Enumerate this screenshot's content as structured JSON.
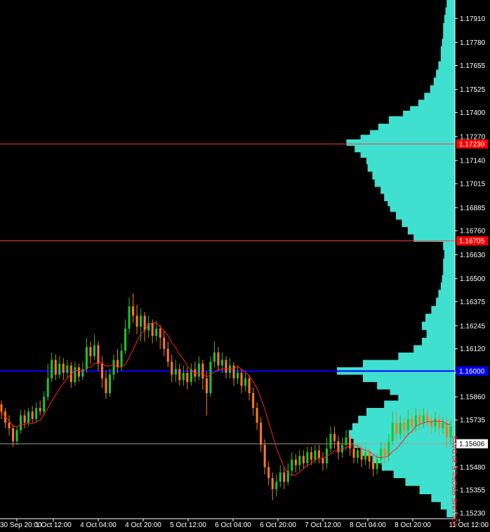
{
  "chart_data": {
    "type": "candlestick",
    "price_axis": {
      "ticks": [
        "1.17910",
        "1.17780",
        "1.17655",
        "1.17525",
        "1.17400",
        "1.17270",
        "1.17140",
        "1.17015",
        "1.16885",
        "1.16760",
        "1.16630",
        "1.16500",
        "1.16375",
        "1.16245",
        "1.16120",
        "1.15990",
        "1.15860",
        "1.15735",
        "1.15606",
        "1.15480",
        "1.15355",
        "1.15230"
      ],
      "tick_values": [
        1.1791,
        1.1778,
        1.17655,
        1.17525,
        1.174,
        1.1727,
        1.1714,
        1.17015,
        1.16885,
        1.1676,
        1.1663,
        1.165,
        1.16375,
        1.16245,
        1.1612,
        1.1599,
        1.1586,
        1.15735,
        1.15606,
        1.1548,
        1.15355,
        1.1523
      ],
      "range": [
        1.152,
        1.1801
      ]
    },
    "time_axis": {
      "labels": [
        "30 Sep 20:00",
        "1 Oct 12:00",
        "4 Oct 04:00",
        "4 Oct 20:00",
        "5 Oct 12:00",
        "6 Oct 04:00",
        "6 Oct 20:00",
        "7 Oct 12:00",
        "8 Oct 04:00",
        "8 Oct 20:00",
        "11 Oct 12:00"
      ]
    },
    "horizontal_levels": [
      {
        "price": 1.1723,
        "label": "1.17230",
        "color": "#ff3b3b",
        "tag_color": "#ff0000"
      },
      {
        "price": 1.16705,
        "label": "1.16705",
        "color": "#ff3b3b",
        "tag_color": "#ff0000"
      },
      {
        "price": 1.16,
        "label": "1.16000",
        "color": "#0000ff",
        "tag_color": "#0000ff"
      },
      {
        "price": 1.15606,
        "label": "1.15606",
        "color": "#9a9a9a",
        "tag_color": "#ffffff",
        "is_bid": true
      }
    ],
    "volume_profile": {
      "color": "#40e0d0",
      "levels": [
        [
          1.1799,
          0.07
        ],
        [
          1.1795,
          0.08
        ],
        [
          1.1791,
          0.09
        ],
        [
          1.1786,
          0.1
        ],
        [
          1.1782,
          0.1
        ],
        [
          1.1778,
          0.11
        ],
        [
          1.1774,
          0.12
        ],
        [
          1.177,
          0.12
        ],
        [
          1.17655,
          0.14
        ],
        [
          1.1761,
          0.16
        ],
        [
          1.1757,
          0.18
        ],
        [
          1.17525,
          0.21
        ],
        [
          1.1749,
          0.26
        ],
        [
          1.1745,
          0.31
        ],
        [
          1.1742,
          0.38
        ],
        [
          1.174,
          0.44
        ],
        [
          1.1736,
          0.56
        ],
        [
          1.1732,
          0.65
        ],
        [
          1.1729,
          0.72
        ],
        [
          1.1727,
          0.8
        ],
        [
          1.1724,
          0.92
        ],
        [
          1.172,
          0.85
        ],
        [
          1.1717,
          0.8
        ],
        [
          1.1714,
          0.75
        ],
        [
          1.171,
          0.74
        ],
        [
          1.1706,
          0.7
        ],
        [
          1.17015,
          0.68
        ],
        [
          1.1698,
          0.63
        ],
        [
          1.1694,
          0.6
        ],
        [
          1.169,
          0.57
        ],
        [
          1.16885,
          0.55
        ],
        [
          1.1684,
          0.5
        ],
        [
          1.168,
          0.45
        ],
        [
          1.1676,
          0.4
        ],
        [
          1.1672,
          0.35
        ],
        [
          1.1668,
          0.1
        ],
        [
          1.1663,
          0.09
        ],
        [
          1.1659,
          0.1
        ],
        [
          1.1654,
          0.1
        ],
        [
          1.165,
          0.11
        ],
        [
          1.1646,
          0.12
        ],
        [
          1.1642,
          0.14
        ],
        [
          1.16375,
          0.16
        ],
        [
          1.1633,
          0.2
        ],
        [
          1.1629,
          0.25
        ],
        [
          1.16245,
          0.28
        ],
        [
          1.162,
          0.24
        ],
        [
          1.1616,
          0.28
        ],
        [
          1.1612,
          0.35
        ],
        [
          1.1608,
          0.48
        ],
        [
          1.1604,
          0.78
        ],
        [
          1.16,
          1.0
        ],
        [
          1.1596,
          0.78
        ],
        [
          1.1592,
          0.66
        ],
        [
          1.1588,
          0.55
        ],
        [
          1.1586,
          0.48
        ],
        [
          1.1582,
          0.6
        ],
        [
          1.1578,
          0.75
        ],
        [
          1.15735,
          0.82
        ],
        [
          1.157,
          0.87
        ],
        [
          1.1566,
          0.9
        ],
        [
          1.15606,
          0.86
        ],
        [
          1.1556,
          0.8
        ],
        [
          1.1552,
          0.7
        ],
        [
          1.1548,
          0.62
        ],
        [
          1.1544,
          0.52
        ],
        [
          1.154,
          0.42
        ],
        [
          1.15355,
          0.3
        ],
        [
          1.1531,
          0.2
        ],
        [
          1.1527,
          0.12
        ],
        [
          1.1523,
          0.07
        ]
      ]
    },
    "candles": [
      [
        1.1582,
        1.1578,
        1.1584,
        1.1574
      ],
      [
        1.1578,
        1.1572,
        1.158,
        1.1569
      ],
      [
        1.1572,
        1.1569,
        1.1576,
        1.1565
      ],
      [
        1.1569,
        1.1562,
        1.1571,
        1.1559
      ],
      [
        1.1562,
        1.1568,
        1.157,
        1.156
      ],
      [
        1.1568,
        1.1576,
        1.1579,
        1.1566
      ],
      [
        1.1576,
        1.1572,
        1.1579,
        1.1569
      ],
      [
        1.1572,
        1.1578,
        1.158,
        1.157
      ],
      [
        1.1578,
        1.1574,
        1.1581,
        1.1572
      ],
      [
        1.1574,
        1.158,
        1.1583,
        1.1572
      ],
      [
        1.158,
        1.1578,
        1.1584,
        1.1576
      ],
      [
        1.1578,
        1.1586,
        1.1589,
        1.1576
      ],
      [
        1.1586,
        1.1596,
        1.1604,
        1.1584
      ],
      [
        1.1596,
        1.1606,
        1.161,
        1.1594
      ],
      [
        1.1606,
        1.1598,
        1.1609,
        1.1595
      ],
      [
        1.1598,
        1.1604,
        1.1608,
        1.1596
      ],
      [
        1.1604,
        1.1599,
        1.1607,
        1.1595
      ],
      [
        1.1599,
        1.1603,
        1.1606,
        1.1596
      ],
      [
        1.1603,
        1.1594,
        1.1605,
        1.1591
      ],
      [
        1.1594,
        1.1602,
        1.1605,
        1.1592
      ],
      [
        1.1602,
        1.1597,
        1.1604,
        1.1594
      ],
      [
        1.1597,
        1.1601,
        1.1605,
        1.1595
      ],
      [
        1.1601,
        1.1613,
        1.1618,
        1.1599
      ],
      [
        1.1613,
        1.1608,
        1.1616,
        1.1604
      ],
      [
        1.1608,
        1.1614,
        1.162,
        1.1606
      ],
      [
        1.1614,
        1.1604,
        1.1616,
        1.16
      ],
      [
        1.1604,
        1.1596,
        1.1608,
        1.1591
      ],
      [
        1.1596,
        1.1588,
        1.16,
        1.1585
      ],
      [
        1.1588,
        1.1598,
        1.1601,
        1.1586
      ],
      [
        1.1598,
        1.1606,
        1.1609,
        1.1595
      ],
      [
        1.1606,
        1.1602,
        1.1612,
        1.1599
      ],
      [
        1.1602,
        1.1611,
        1.1615,
        1.16
      ],
      [
        1.1611,
        1.1623,
        1.1628,
        1.1609
      ],
      [
        1.1623,
        1.1635,
        1.164,
        1.162
      ],
      [
        1.1635,
        1.163,
        1.1642,
        1.1626
      ],
      [
        1.163,
        1.1624,
        1.1636,
        1.162
      ],
      [
        1.1624,
        1.163,
        1.1634,
        1.1616
      ],
      [
        1.163,
        1.1622,
        1.1632,
        1.1616
      ],
      [
        1.1622,
        1.1626,
        1.163,
        1.1618
      ],
      [
        1.1626,
        1.1619,
        1.1628,
        1.1615
      ],
      [
        1.1619,
        1.1623,
        1.1627,
        1.1616
      ],
      [
        1.1623,
        1.1618,
        1.1625,
        1.1612
      ],
      [
        1.1618,
        1.1612,
        1.1622,
        1.1608
      ],
      [
        1.1612,
        1.1605,
        1.1616,
        1.1602
      ],
      [
        1.1605,
        1.1598,
        1.1609,
        1.1594
      ],
      [
        1.1598,
        1.1601,
        1.1606,
        1.1594
      ],
      [
        1.1601,
        1.1595,
        1.1604,
        1.1592
      ],
      [
        1.1595,
        1.1599,
        1.1603,
        1.1592
      ],
      [
        1.1599,
        1.1594,
        1.1602,
        1.159
      ],
      [
        1.1594,
        1.1601,
        1.1604,
        1.1592
      ],
      [
        1.1601,
        1.1597,
        1.1605,
        1.1594
      ],
      [
        1.1597,
        1.1604,
        1.1608,
        1.1595
      ],
      [
        1.1604,
        1.1596,
        1.1606,
        1.159
      ],
      [
        1.1596,
        1.1588,
        1.16,
        1.1576
      ],
      [
        1.1588,
        1.1605,
        1.1608,
        1.1586
      ],
      [
        1.1605,
        1.161,
        1.1616,
        1.1602
      ],
      [
        1.161,
        1.1603,
        1.1613,
        1.16
      ],
      [
        1.1603,
        1.1606,
        1.161,
        1.1599
      ],
      [
        1.1606,
        1.1599,
        1.1608,
        1.1596
      ],
      [
        1.1599,
        1.1603,
        1.1607,
        1.1596
      ],
      [
        1.1603,
        1.1596,
        1.1605,
        1.1592
      ],
      [
        1.1596,
        1.1599,
        1.1603,
        1.1593
      ],
      [
        1.1599,
        1.1592,
        1.1601,
        1.1588
      ],
      [
        1.1592,
        1.1596,
        1.1599,
        1.1589
      ],
      [
        1.1596,
        1.1588,
        1.1598,
        1.1584
      ],
      [
        1.1588,
        1.158,
        1.1591,
        1.1576
      ],
      [
        1.158,
        1.1572,
        1.1583,
        1.1568
      ],
      [
        1.1572,
        1.156,
        1.1575,
        1.1556
      ],
      [
        1.156,
        1.1548,
        1.1563,
        1.1544
      ],
      [
        1.1548,
        1.1542,
        1.1551,
        1.1538
      ],
      [
        1.1542,
        1.1536,
        1.1545,
        1.153
      ],
      [
        1.1536,
        1.154,
        1.1544,
        1.1532
      ],
      [
        1.154,
        1.1545,
        1.1549,
        1.1537
      ],
      [
        1.1545,
        1.154,
        1.1548,
        1.1536
      ],
      [
        1.154,
        1.1546,
        1.155,
        1.1538
      ],
      [
        1.1546,
        1.1552,
        1.1556,
        1.1543
      ],
      [
        1.1552,
        1.1549,
        1.1555,
        1.1545
      ],
      [
        1.1549,
        1.1554,
        1.1557,
        1.1546
      ],
      [
        1.1554,
        1.155,
        1.1557,
        1.1547
      ],
      [
        1.155,
        1.1556,
        1.1559,
        1.1548
      ],
      [
        1.1556,
        1.1552,
        1.1559,
        1.1549
      ],
      [
        1.1552,
        1.1557,
        1.156,
        1.155
      ],
      [
        1.1557,
        1.1553,
        1.156,
        1.155
      ],
      [
        1.1553,
        1.155,
        1.1556,
        1.1546
      ],
      [
        1.155,
        1.1558,
        1.1564,
        1.1547
      ],
      [
        1.1558,
        1.1566,
        1.157,
        1.1556
      ],
      [
        1.1566,
        1.1562,
        1.157,
        1.1558
      ],
      [
        1.1562,
        1.1556,
        1.1565,
        1.1552
      ],
      [
        1.1556,
        1.156,
        1.1564,
        1.1553
      ],
      [
        1.156,
        1.1564,
        1.1568,
        1.1557
      ],
      [
        1.1564,
        1.1558,
        1.1566,
        1.1554
      ],
      [
        1.1558,
        1.1553,
        1.1561,
        1.155
      ],
      [
        1.1553,
        1.1557,
        1.1561,
        1.155
      ],
      [
        1.1557,
        1.1552,
        1.156,
        1.1548
      ],
      [
        1.1552,
        1.1556,
        1.1559,
        1.1549
      ],
      [
        1.1556,
        1.1551,
        1.1558,
        1.1547
      ],
      [
        1.1551,
        1.1547,
        1.1554,
        1.1543
      ],
      [
        1.1547,
        1.1552,
        1.1555,
        1.1544
      ],
      [
        1.1552,
        1.1558,
        1.1562,
        1.1549
      ],
      [
        1.1558,
        1.1554,
        1.1561,
        1.155
      ],
      [
        1.1554,
        1.1562,
        1.1566,
        1.1551
      ],
      [
        1.1562,
        1.1572,
        1.1578,
        1.156
      ],
      [
        1.1572,
        1.1566,
        1.1578,
        1.1562
      ],
      [
        1.1566,
        1.1572,
        1.1576,
        1.1563
      ],
      [
        1.1572,
        1.1568,
        1.1575,
        1.1564
      ],
      [
        1.1568,
        1.1574,
        1.1579,
        1.1565
      ],
      [
        1.1574,
        1.157,
        1.1577,
        1.1566
      ],
      [
        1.157,
        1.1576,
        1.158,
        1.1567
      ],
      [
        1.1576,
        1.1572,
        1.1579,
        1.1568
      ],
      [
        1.1572,
        1.1576,
        1.158,
        1.1569
      ],
      [
        1.1576,
        1.1573,
        1.1579,
        1.157
      ],
      [
        1.1573,
        1.157,
        1.1576,
        1.1566
      ],
      [
        1.157,
        1.1574,
        1.1578,
        1.1567
      ],
      [
        1.1574,
        1.1569,
        1.1577,
        1.1565
      ],
      [
        1.1569,
        1.1572,
        1.1575,
        1.1566
      ],
      [
        1.1572,
        1.1564,
        1.1575,
        1.1558
      ],
      [
        1.1564,
        1.157,
        1.1574,
        1.156
      ]
    ],
    "indicator_text": "VOLUME PROFILE 30 DAYS",
    "colors": {
      "background": "#000000",
      "bull": "#22c22a",
      "bear": "#ff7a1a",
      "ma": "#ff2020",
      "axis_text": "#ffffff",
      "axis_line": "#ffffff"
    }
  }
}
